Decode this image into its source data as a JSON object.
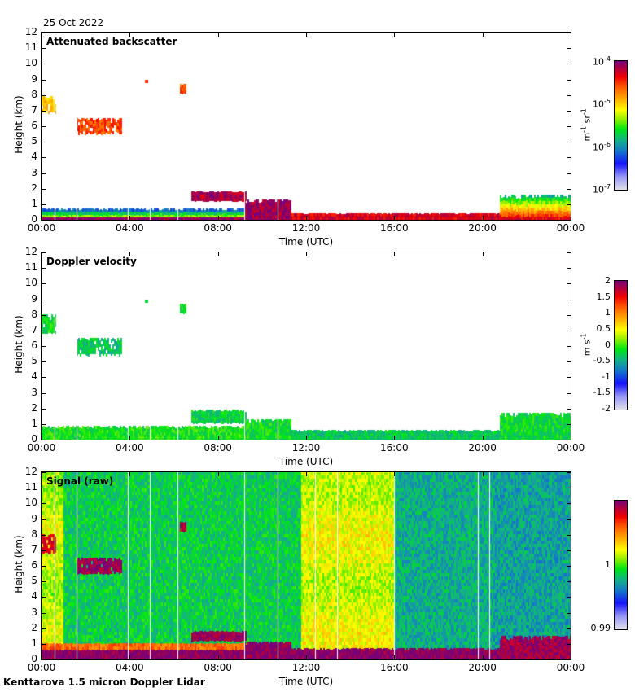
{
  "date": "25 Oct 2022",
  "footer": "Kenttarova 1.5 micron Doppler Lidar",
  "chart_data": [
    {
      "type": "heatmap",
      "title": "Attenuated backscatter",
      "xlabel": "Time (UTC)",
      "ylabel": "Height (km)",
      "xlim_hours": [
        0,
        24
      ],
      "ylim": [
        0,
        12
      ],
      "xticks": [
        "00:00",
        "04:00",
        "08:00",
        "12:00",
        "16:00",
        "20:00",
        "00:00"
      ],
      "yticks": [
        "0",
        "1",
        "2",
        "3",
        "4",
        "5",
        "6",
        "7",
        "8",
        "9",
        "10",
        "11",
        "12"
      ],
      "colorbar": {
        "labels": [
          "10-4",
          "10-5",
          "10-6",
          "10-7"
        ],
        "label_values": [
          -4,
          -5,
          -6,
          -7
        ],
        "unit": "m-1 sr-1",
        "scale": "log",
        "range": [
          -7,
          -4
        ]
      },
      "features": [
        {
          "name": "boundary-layer",
          "t": [
            0,
            9.5
          ],
          "h": [
            0,
            0.7
          ],
          "level": 0.55
        },
        {
          "name": "surface-layer",
          "t": [
            0,
            9.5
          ],
          "h": [
            0,
            0.15
          ],
          "level": 0.98
        },
        {
          "name": "cloud-low",
          "t": [
            6.8,
            9.3
          ],
          "h": [
            1.3,
            1.8
          ],
          "level": 0.95
        },
        {
          "name": "descending-cloud",
          "t": [
            9.2,
            11.3
          ],
          "h": [
            0,
            1.3
          ],
          "level": 0.97
        },
        {
          "name": "afternoon-bl",
          "t": [
            11.3,
            24
          ],
          "h": [
            0,
            0.4
          ],
          "level": 0.9
        },
        {
          "name": "cirrus-a",
          "t": [
            0,
            0.6
          ],
          "h": [
            6.9,
            7.9
          ],
          "level": 0.68
        },
        {
          "name": "cirrus-b",
          "t": [
            1.6,
            3.6
          ],
          "h": [
            5.6,
            6.5
          ],
          "level": 0.82
        },
        {
          "name": "speck-a",
          "t": [
            4.7,
            4.8
          ],
          "h": [
            8.8,
            8.95
          ],
          "level": 0.85
        },
        {
          "name": "speck-b",
          "t": [
            6.3,
            6.5
          ],
          "h": [
            8.2,
            8.7
          ],
          "level": 0.8
        },
        {
          "name": "evening-cloud",
          "t": [
            20.8,
            24
          ],
          "h": [
            0,
            1.6
          ],
          "level": 0.8
        }
      ]
    },
    {
      "type": "heatmap",
      "title": "Doppler velocity",
      "xlabel": "Time (UTC)",
      "ylabel": "Height (km)",
      "xlim_hours": [
        0,
        24
      ],
      "ylim": [
        0,
        12
      ],
      "xticks": [
        "00:00",
        "04:00",
        "08:00",
        "12:00",
        "16:00",
        "20:00",
        "00:00"
      ],
      "yticks": [
        "0",
        "1",
        "2",
        "3",
        "4",
        "5",
        "6",
        "7",
        "8",
        "9",
        "10",
        "11",
        "12"
      ],
      "colorbar": {
        "labels": [
          "2",
          "1.5",
          "1",
          "0.5",
          "0",
          "-0.5",
          "-1",
          "-1.5",
          "-2"
        ],
        "label_values": [
          2,
          1.5,
          1,
          0.5,
          0,
          -0.5,
          -1,
          -1.5,
          -2
        ],
        "unit": "m s-1",
        "range": [
          -2,
          2
        ]
      },
      "features": [
        {
          "name": "boundary-layer",
          "t": [
            0,
            9.5
          ],
          "h": [
            0,
            0.85
          ],
          "level": 0.47
        },
        {
          "name": "cloud-low",
          "t": [
            6.8,
            9.3
          ],
          "h": [
            1.1,
            1.9
          ],
          "level": 0.44
        },
        {
          "name": "descending-cloud",
          "t": [
            9.2,
            11.3
          ],
          "h": [
            0,
            1.3
          ],
          "level": 0.46
        },
        {
          "name": "afternoon-bl",
          "t": [
            11.3,
            24
          ],
          "h": [
            0,
            0.6
          ],
          "level": 0.42
        },
        {
          "name": "cirrus-a",
          "t": [
            0,
            0.6
          ],
          "h": [
            6.9,
            8.0
          ],
          "level": 0.46
        },
        {
          "name": "cirrus-b",
          "t": [
            1.6,
            3.6
          ],
          "h": [
            5.5,
            6.5
          ],
          "level": 0.42
        },
        {
          "name": "speck-a",
          "t": [
            4.7,
            4.8
          ],
          "h": [
            8.8,
            8.95
          ],
          "level": 0.46
        },
        {
          "name": "speck-b",
          "t": [
            6.3,
            6.5
          ],
          "h": [
            8.2,
            8.7
          ],
          "level": 0.46
        },
        {
          "name": "evening-cloud",
          "t": [
            20.8,
            24
          ],
          "h": [
            0,
            1.7
          ],
          "level": 0.45
        }
      ]
    },
    {
      "type": "heatmap",
      "title": "Signal (raw)",
      "xlabel": "Time (UTC)",
      "ylabel": "Height (km)",
      "xlim_hours": [
        0,
        24
      ],
      "ylim": [
        0,
        12
      ],
      "xticks": [
        "00:00",
        "04:00",
        "08:00",
        "12:00",
        "16:00",
        "20:00",
        "00:00"
      ],
      "yticks": [
        "0",
        "1",
        "2",
        "3",
        "4",
        "5",
        "6",
        "7",
        "8",
        "9",
        "10",
        "11",
        "12"
      ],
      "colorbar": {
        "labels": [
          "1",
          "0.99"
        ],
        "label_values": [
          1,
          0.99
        ],
        "unit": "",
        "range": [
          0.99,
          1.01
        ]
      },
      "background_segments": [
        {
          "t": [
            0,
            1.0
          ],
          "level": 0.58
        },
        {
          "t": [
            1.0,
            11.8
          ],
          "level": 0.43
        },
        {
          "t": [
            11.8,
            16.0
          ],
          "level": 0.6
        },
        {
          "t": [
            16.0,
            20.5
          ],
          "level": 0.38
        },
        {
          "t": [
            20.5,
            24
          ],
          "level": 0.36
        }
      ],
      "gap_lines_hours": [
        0.6,
        1.6,
        3.9,
        4.9,
        6.15,
        9.2,
        10.7,
        12.4,
        13.4,
        16.0,
        19.8,
        20.3
      ],
      "features": [
        {
          "name": "near-surface",
          "t": [
            0,
            24
          ],
          "h": [
            0,
            0.7
          ],
          "level": 0.99
        },
        {
          "name": "bl-top-band",
          "t": [
            0,
            9.5
          ],
          "h": [
            0.7,
            1.0
          ],
          "level": 0.78
        },
        {
          "name": "cloud-low",
          "t": [
            6.8,
            9.3
          ],
          "h": [
            1.3,
            1.8
          ],
          "level": 0.97
        },
        {
          "name": "descending-cloud",
          "t": [
            9.2,
            11.3
          ],
          "h": [
            0,
            1.1
          ],
          "level": 0.99
        },
        {
          "name": "cirrus-a",
          "t": [
            0,
            0.6
          ],
          "h": [
            6.9,
            8.0
          ],
          "level": 0.9
        },
        {
          "name": "cirrus-b",
          "t": [
            1.6,
            3.6
          ],
          "h": [
            5.6,
            6.5
          ],
          "level": 0.97
        },
        {
          "name": "speck-b",
          "t": [
            6.3,
            6.5
          ],
          "h": [
            8.2,
            8.8
          ],
          "level": 0.92
        },
        {
          "name": "evening-cloud",
          "t": [
            20.8,
            24
          ],
          "h": [
            0,
            1.5
          ],
          "level": 0.97
        }
      ]
    }
  ]
}
